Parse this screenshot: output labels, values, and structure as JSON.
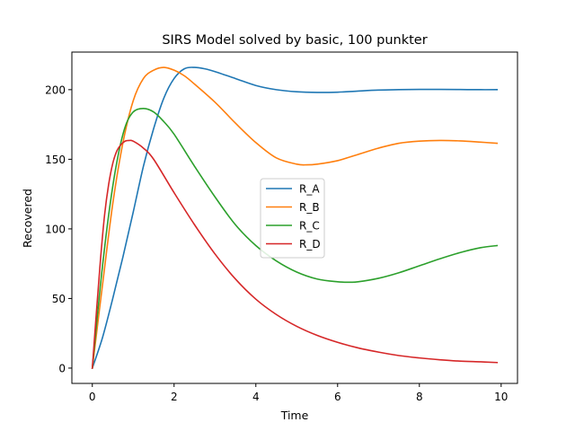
{
  "chart_data": {
    "type": "line",
    "title": "SIRS Model solved by basic, 100 punkter",
    "xlabel": "Time",
    "ylabel": "Recovered",
    "xlim": [
      -0.5,
      10.4
    ],
    "ylim": [
      -11,
      227
    ],
    "xticks": [
      0,
      2,
      4,
      6,
      8,
      10
    ],
    "yticks": [
      0,
      50,
      100,
      150,
      200
    ],
    "grid": false,
    "legend_position": "center-right",
    "series": [
      {
        "name": "R_A",
        "color": "#1f77b4",
        "x": [
          0,
          0.25,
          0.5,
          0.75,
          1.0,
          1.25,
          1.5,
          1.75,
          2.0,
          2.25,
          2.5,
          2.75,
          3.0,
          3.5,
          4.0,
          4.5,
          5.0,
          5.5,
          6.0,
          6.5,
          7.0,
          7.5,
          8.0,
          8.5,
          9.0,
          9.5,
          9.9
        ],
        "y": [
          0,
          22,
          50,
          80,
          112,
          145,
          172,
          194,
          208,
          215,
          216,
          215,
          213,
          208,
          203,
          200,
          198.5,
          198,
          198.2,
          199,
          199.7,
          200,
          200.2,
          200.2,
          200.1,
          200,
          200
        ]
      },
      {
        "name": "R_B",
        "color": "#ff7f0e",
        "x": [
          0,
          0.25,
          0.5,
          0.75,
          1.0,
          1.25,
          1.5,
          1.75,
          2.0,
          2.25,
          2.5,
          3.0,
          3.5,
          4.0,
          4.5,
          5.0,
          5.25,
          5.5,
          6.0,
          6.5,
          7.0,
          7.5,
          8.0,
          8.5,
          9.0,
          9.5,
          9.9
        ],
        "y": [
          0,
          60,
          118,
          162,
          192,
          208,
          214,
          216,
          214,
          210,
          204,
          191,
          176,
          162,
          151,
          146.5,
          146,
          146.5,
          149,
          153.5,
          158,
          161.5,
          163,
          163.5,
          163.2,
          162.3,
          161.5
        ]
      },
      {
        "name": "R_C",
        "color": "#2ca02c",
        "x": [
          0,
          0.2,
          0.4,
          0.6,
          0.8,
          1.0,
          1.25,
          1.5,
          1.75,
          2.0,
          2.5,
          3.0,
          3.5,
          4.0,
          4.5,
          5.0,
          5.5,
          6.0,
          6.3,
          6.5,
          7.0,
          7.5,
          8.0,
          8.5,
          9.0,
          9.5,
          9.9
        ],
        "y": [
          0,
          60,
          110,
          148,
          173,
          184,
          186.5,
          184,
          177,
          168,
          145,
          123,
          103,
          88,
          77,
          69,
          64,
          62,
          61.7,
          62,
          64.5,
          68.5,
          73.5,
          78.5,
          83,
          86.5,
          88
        ]
      },
      {
        "name": "R_D",
        "color": "#d62728",
        "x": [
          0,
          0.1,
          0.2,
          0.3,
          0.4,
          0.5,
          0.6,
          0.7,
          0.8,
          0.9,
          1.0,
          1.25,
          1.5,
          2.0,
          2.5,
          3.0,
          3.5,
          4.0,
          4.5,
          5.0,
          5.5,
          6.0,
          6.5,
          7.0,
          7.5,
          8.0,
          8.5,
          9.0,
          9.5,
          9.9
        ],
        "y": [
          0,
          40,
          78,
          110,
          132,
          147,
          156,
          160.5,
          163,
          163.5,
          163,
          158,
          150,
          126,
          103,
          82,
          64,
          49.5,
          38.5,
          30,
          23.5,
          18.5,
          14.5,
          11.5,
          9,
          7.3,
          6,
          5,
          4.5,
          4
        ]
      }
    ]
  }
}
